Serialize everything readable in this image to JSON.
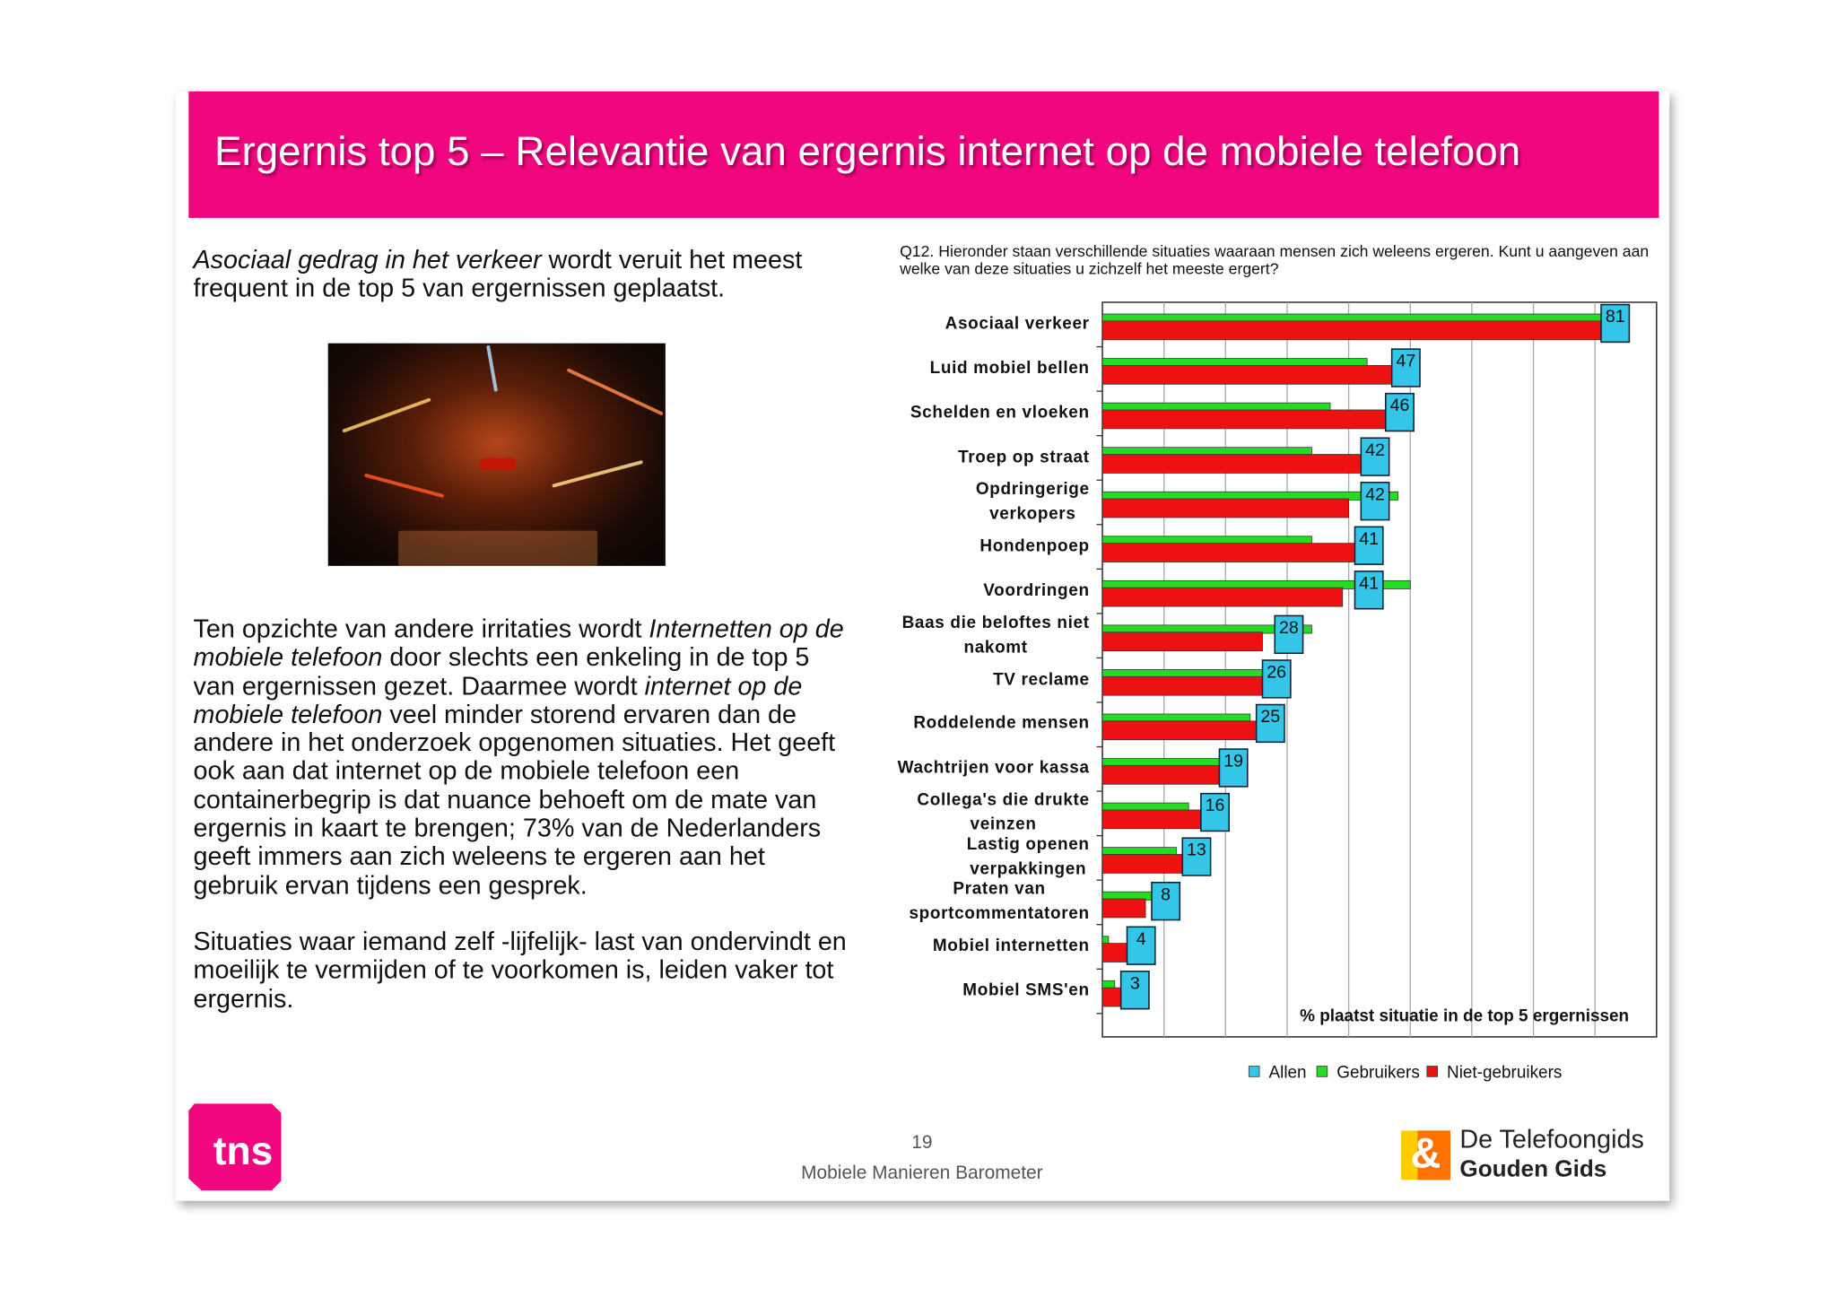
{
  "slide": {
    "title": "Ergernis top 5 – Relevantie van ergernis internet op de mobiele telefoon",
    "intro": [
      {
        "text": "Asociaal gedrag in het verkeer",
        "italic": true
      },
      {
        "text": " wordt veruit het meest frequent in de top 5 van ergernissen geplaatst.",
        "italic": false
      }
    ],
    "body": [
      {
        "text": "Ten opzichte van andere irritaties wordt ",
        "italic": false
      },
      {
        "text": "Internetten op de mobiele telefoon",
        "italic": true
      },
      {
        "text": " door slechts een enkeling in de top 5 van ergernissen gezet. Daarmee wordt ",
        "italic": false
      },
      {
        "text": "internet op de mobiele telefoon",
        "italic": true
      },
      {
        "text": " veel minder storend ervaren dan de andere in het onderzoek opgenomen situaties. Het geeft ook aan dat internet op de mobiele telefoon een containerbegrip is dat nuance behoeft om de mate van ergernis in kaart te brengen; 73% van de Nederlanders geeft immers aan zich weleens te ergeren aan het gebruik ervan tijdens een gesprek.",
        "italic": false
      }
    ],
    "closing": "Situaties waar iemand zelf -lijfelijk- last van ondervindt en moeilijk te vermijden of te voorkomen is, leiden vaker tot ergernis.",
    "page_number": "19",
    "footer": "Mobiele Manieren Barometer",
    "logo_left": "tns",
    "logo_right": [
      "De Telefoongids",
      "Gouden Gids"
    ],
    "logo_right_mark": "&"
  },
  "chart_data": {
    "type": "bar",
    "orientation": "horizontal",
    "question": "Q12. Hieronder staan verschillende situaties waaraan mensen zich weleens ergeren. Kunt u aangeven aan welke van deze situaties u zichzelf het meeste ergert?",
    "annotation": "% plaatst situatie in de top 5 ergernissen",
    "categories": [
      "Asociaal verkeer",
      "Luid mobiel bellen",
      "Schelden en vloeken",
      "Troep op straat",
      "Opdringerige\nverkopers",
      "Hondenpoep",
      "Voordringen",
      "Baas die beloftes niet\nnakomt",
      "TV reclame",
      "Roddelende mensen",
      "Wachtrijen voor kassa",
      "Collega's die drukte\nveinzen",
      "Lastig openen\nverpakkingen",
      "Praten van\nsportcommentatoren",
      "Mobiel internetten",
      "Mobiel SMS'en"
    ],
    "series": [
      {
        "name": "Allen",
        "color": "#33c6e8",
        "values": [
          81,
          47,
          46,
          42,
          42,
          41,
          41,
          28,
          26,
          25,
          19,
          16,
          13,
          8,
          4,
          3
        ]
      },
      {
        "name": "Gebruikers",
        "color": "#22dd22",
        "values": [
          81,
          43,
          37,
          34,
          48,
          34,
          50,
          34,
          26,
          24,
          19,
          14,
          12,
          9,
          1,
          2
        ]
      },
      {
        "name": "Niet-gebruikers",
        "color": "#ee1111",
        "values": [
          81,
          48,
          48,
          43,
          40,
          41,
          39,
          26,
          26,
          25,
          19,
          16,
          14,
          7,
          5,
          4
        ]
      }
    ],
    "xlim": [
      0,
      90
    ],
    "xticks": [
      10,
      20,
      30,
      40,
      50,
      60,
      70,
      80
    ],
    "grid": true,
    "legend": "bottom"
  }
}
